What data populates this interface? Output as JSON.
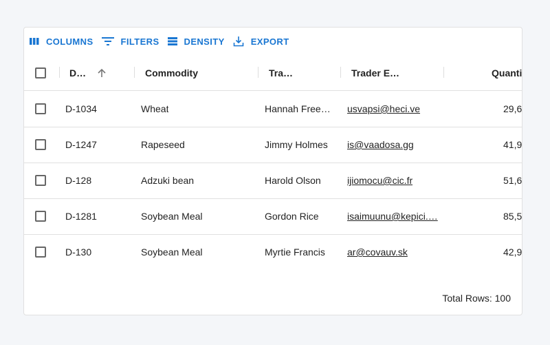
{
  "toolbar": {
    "columns": "COLUMNS",
    "filters": "FILTERS",
    "density": "DENSITY",
    "export": "EXPORT"
  },
  "accent": "#1976d2",
  "columns": {
    "id": "D…",
    "commodity": "Commodity",
    "trader": "Tra…",
    "email": "Trader E…",
    "quantity": "Quantit"
  },
  "sort": {
    "column": "id",
    "direction": "ascending"
  },
  "rows": [
    {
      "id": "D-1034",
      "commodity": "Wheat",
      "trader": "Hannah Free…",
      "email": "usvapsi@heci.ve",
      "quantity": "29,6"
    },
    {
      "id": "D-1247",
      "commodity": "Rapeseed",
      "trader": "Jimmy Holmes",
      "email": "is@vaadosa.gg",
      "quantity": "41,9"
    },
    {
      "id": "D-128",
      "commodity": "Adzuki bean",
      "trader": "Harold Olson",
      "email": "ijiomocu@cic.fr",
      "quantity": "51,6"
    },
    {
      "id": "D-1281",
      "commodity": "Soybean Meal",
      "trader": "Gordon Rice",
      "email": "isaimuunu@kepici.…",
      "quantity": "85,5"
    },
    {
      "id": "D-130",
      "commodity": "Soybean Meal",
      "trader": "Myrtie Francis",
      "email": "ar@covauv.sk",
      "quantity": "42,9"
    }
  ],
  "footer": {
    "total": "Total Rows: 100"
  }
}
